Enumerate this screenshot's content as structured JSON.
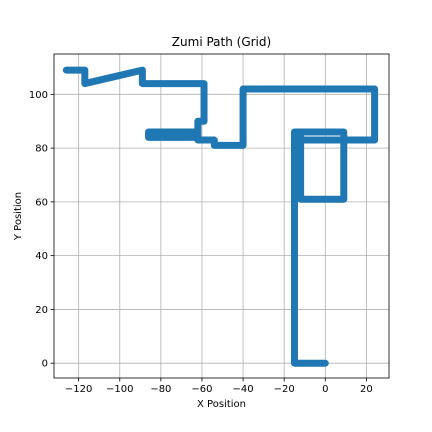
{
  "chart_data": {
    "type": "line",
    "title": "Zumi Path (Grid)",
    "xlabel": "X Position",
    "ylabel": "Y Position",
    "xlim": [
      -132,
      31
    ],
    "ylim": [
      -5.5,
      115
    ],
    "xticks": [
      -120,
      -100,
      -80,
      -60,
      -40,
      -20,
      0,
      20
    ],
    "yticks": [
      0,
      20,
      40,
      60,
      80,
      100
    ],
    "grid": true,
    "series": [
      {
        "color": "#1f77b4",
        "x": [
          0,
          -15,
          -15,
          -15,
          -12,
          -12,
          9,
          9,
          -10,
          -12,
          -12,
          -11,
          24,
          24,
          -40,
          -40,
          -54,
          -54,
          -62,
          -62,
          -86,
          -86,
          -62,
          -62,
          -59,
          -59,
          -89,
          -89,
          -117,
          -117,
          -126
        ],
        "y": [
          0,
          0,
          86,
          86,
          86,
          61,
          61,
          86,
          86,
          86,
          83,
          83,
          83,
          102,
          102,
          81,
          81,
          83,
          83,
          86,
          86,
          84,
          84,
          90,
          90,
          104,
          104,
          109,
          104,
          109,
          109
        ]
      }
    ]
  }
}
